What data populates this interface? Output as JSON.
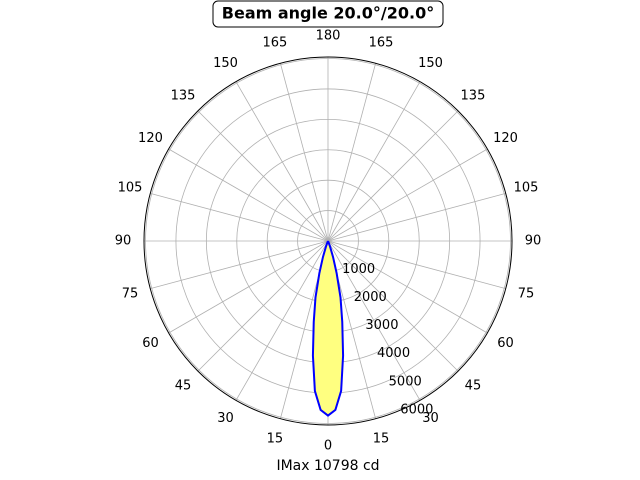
{
  "chart_data": {
    "type": "polar",
    "title": "Beam angle 20.0°/20.0°",
    "xlabel": "IMax 10798 cd",
    "x": [
      -25,
      -22.5,
      -20,
      -17.5,
      -15,
      -12.5,
      -10,
      -7.5,
      -5,
      -2.5,
      0,
      2.5,
      5,
      7.5,
      10,
      12.5,
      15,
      17.5,
      20,
      22.5,
      25
    ],
    "values": [
      0,
      40,
      200,
      550,
      1100,
      1900,
      2700,
      3800,
      4950,
      5560,
      5740,
      5560,
      4950,
      3800,
      2700,
      1900,
      1100,
      550,
      200,
      40,
      0
    ],
    "color": "#0000ff",
    "fill": "#ffff80",
    "rlim": [
      0,
      6050
    ],
    "rticks": [
      1000,
      2000,
      3000,
      4000,
      5000,
      6000
    ],
    "thetaticks": [
      {
        "value": 0,
        "label": "0"
      },
      {
        "value": 15,
        "label": "15"
      },
      {
        "value": 30,
        "label": "30"
      },
      {
        "value": 45,
        "label": "45"
      },
      {
        "value": 60,
        "label": "60"
      },
      {
        "value": 75,
        "label": "75"
      },
      {
        "value": 90,
        "label": "90"
      },
      {
        "value": 105,
        "label": "105"
      },
      {
        "value": 120,
        "label": "120"
      },
      {
        "value": 135,
        "label": "135"
      },
      {
        "value": 150,
        "label": "150"
      },
      {
        "value": 165,
        "label": "165"
      },
      {
        "value": 180,
        "label": "180"
      },
      {
        "value": 195,
        "label": "165"
      },
      {
        "value": 210,
        "label": "150"
      },
      {
        "value": 225,
        "label": "135"
      },
      {
        "value": 240,
        "label": "120"
      },
      {
        "value": 255,
        "label": "105"
      },
      {
        "value": 270,
        "label": "90"
      },
      {
        "value": 285,
        "label": "75"
      },
      {
        "value": 300,
        "label": "60"
      },
      {
        "value": 315,
        "label": "45"
      },
      {
        "value": 330,
        "label": "30"
      },
      {
        "value": 345,
        "label": "15"
      }
    ],
    "grid": true
  }
}
